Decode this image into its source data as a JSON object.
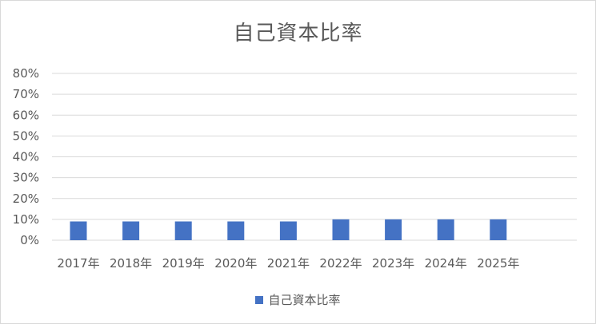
{
  "chart_data": {
    "type": "bar",
    "title": "自己資本比率",
    "categories": [
      "2017年",
      "2018年",
      "2019年",
      "2020年",
      "2021年",
      "2022年",
      "2023年",
      "2024年",
      "2025年"
    ],
    "series": [
      {
        "name": "自己資本比率",
        "values": [
          0.09,
          0.09,
          0.09,
          0.09,
          0.09,
          0.1,
          0.1,
          0.1,
          0.1
        ],
        "color": "#4472c4"
      }
    ],
    "y_ticks": [
      "0%",
      "10%",
      "20%",
      "30%",
      "40%",
      "50%",
      "60%",
      "70%",
      "80%"
    ],
    "ylim": [
      0,
      0.8
    ],
    "grid": true,
    "legend_position": "bottom"
  }
}
